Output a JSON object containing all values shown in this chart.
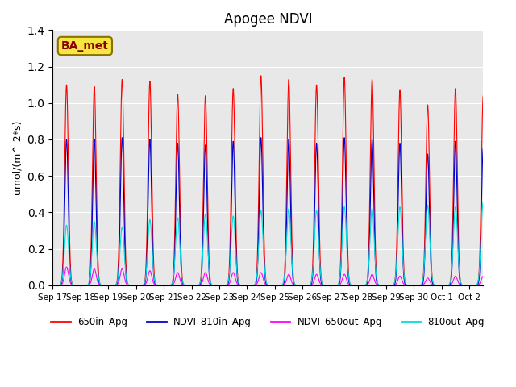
{
  "title": "Apogee NDVI",
  "ylabel": "umol/(m^ 2*s)",
  "ylim": [
    0,
    1.4
  ],
  "yticks": [
    0.0,
    0.2,
    0.4,
    0.6,
    0.8,
    1.0,
    1.2,
    1.4
  ],
  "background_color": "#e8e8e8",
  "plot_bg_color": "#e8e8e8",
  "grid_color": "white",
  "annotation_label": "BA_met",
  "annotation_box_color": "#f5e642",
  "annotation_box_edge": "#8b7000",
  "annotation_text_color": "#8b0000",
  "series": [
    {
      "label": "650in_Apg",
      "color": "#ff0000"
    },
    {
      "label": "NDVI_810in_Apg",
      "color": "#0000cc"
    },
    {
      "label": "NDVI_650out_Apg",
      "color": "#ff00ff"
    },
    {
      "label": "810out_Apg",
      "color": "#00dddd"
    }
  ],
  "date_labels": [
    "Sep 17",
    "Sep 18",
    "Sep 19",
    "Sep 20",
    "Sep 21",
    "Sep 22",
    "Sep 23",
    "Sep 24",
    "Sep 25",
    "Sep 26",
    "Sep 27",
    "Sep 28",
    "Sep 29",
    "Sep 30",
    "Oct 1",
    "Oct 2"
  ],
  "red_peaks": [
    1.1,
    1.09,
    1.13,
    1.12,
    1.05,
    1.04,
    1.08,
    1.15,
    1.13,
    1.1,
    1.14,
    1.13,
    1.07,
    0.99,
    1.08,
    1.04
  ],
  "blue_peaks": [
    0.8,
    0.8,
    0.81,
    0.8,
    0.78,
    0.77,
    0.79,
    0.81,
    0.8,
    0.78,
    0.81,
    0.8,
    0.78,
    0.72,
    0.79,
    0.75
  ],
  "magenta_peaks": [
    0.1,
    0.09,
    0.09,
    0.08,
    0.07,
    0.07,
    0.07,
    0.07,
    0.06,
    0.06,
    0.06,
    0.06,
    0.05,
    0.04,
    0.05,
    0.05
  ],
  "cyan_peaks": [
    0.33,
    0.35,
    0.32,
    0.36,
    0.37,
    0.39,
    0.38,
    0.41,
    0.42,
    0.41,
    0.43,
    0.42,
    0.43,
    0.44,
    0.43,
    0.46
  ]
}
